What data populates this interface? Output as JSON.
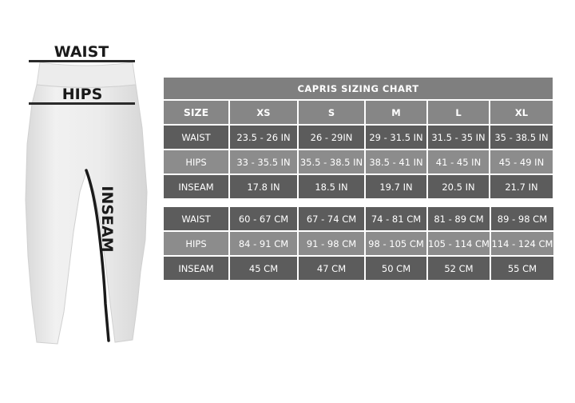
{
  "figure": {
    "waist_label": "WAIST",
    "hips_label": "HIPS",
    "inseam_label": "INSEAM"
  },
  "chart": {
    "title": "CAPRIS SIZING CHART",
    "size_header": "SIZE",
    "sizes": [
      "XS",
      "S",
      "M",
      "L",
      "XL"
    ]
  },
  "inches_rows": [
    {
      "label": "WAIST",
      "values": [
        "23.5 - 26 IN",
        "26 - 29IN",
        "29 - 31.5 IN",
        "31.5 - 35 IN",
        "35 - 38.5 IN"
      ]
    },
    {
      "label": "HIPS",
      "values": [
        "33 - 35.5 IN",
        "35.5 - 38.5 IN",
        "38.5 - 41 IN",
        "41 - 45 IN",
        "45 - 49 IN"
      ]
    },
    {
      "label": "INSEAM",
      "values": [
        "17.8 IN",
        "18.5 IN",
        "19.7 IN",
        "20.5 IN",
        "21.7 IN"
      ]
    }
  ],
  "cm_rows": [
    {
      "label": "WAIST",
      "values": [
        "60 - 67 CM",
        "67 - 74 CM",
        "74 - 81 CM",
        "81 - 89 CM",
        "89 - 98 CM"
      ]
    },
    {
      "label": "HIPS",
      "values": [
        "84 - 91 CM",
        "91 - 98 CM",
        "98 - 105 CM",
        "105 - 114 CM",
        "114 - 124 CM"
      ]
    },
    {
      "label": "INSEAM",
      "values": [
        "45 CM",
        "47 CM",
        "50 CM",
        "52 CM",
        "55 CM"
      ]
    }
  ],
  "colors": {
    "dark_row": "#5c5c5c",
    "light_row": "#8c8c8c",
    "header": "#868686",
    "title_bar": "#7f7f7f",
    "text": "#ffffff"
  }
}
